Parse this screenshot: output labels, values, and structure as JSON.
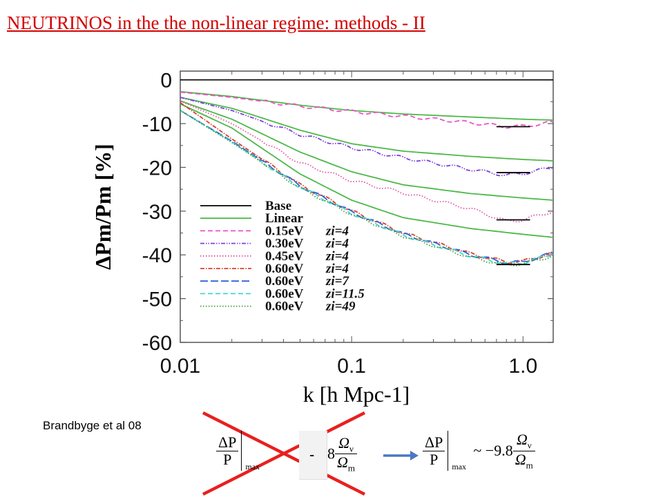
{
  "title": "NEUTRINOS in the the non-linear regime:  methods - II",
  "citation": "Brandbyge et al 08",
  "formula_left": {
    "num": "ΔP",
    "den": "P",
    "sub": "max"
  },
  "formula_minus": "-",
  "formula_mid": {
    "coef": "8",
    "num": "Ω",
    "num_sub": "ν",
    "den": "Ω",
    "den_sub": "m"
  },
  "formula_right": {
    "num": "ΔP",
    "den": "P",
    "sub": "max",
    "approx": "~ −9.8",
    "num2": "Ω",
    "num2_sub": "ν",
    "den2": "Ω",
    "den2_sub": "m"
  },
  "colors": {
    "title": "#d40000",
    "cross": "#e8201e",
    "arrow": "#4a77c4"
  },
  "chart_data": {
    "type": "line",
    "xlabel": "k [h Mpc-1]",
    "ylabel": "ΔPm/Pm [%]",
    "xscale": "log",
    "xlim": [
      0.01,
      1.5
    ],
    "ylim": [
      -60,
      2
    ],
    "xticks": [
      "0.01",
      "0.1",
      "1.0"
    ],
    "xtick_values": [
      0.01,
      0.1,
      1.0
    ],
    "yticks": [
      "0",
      "-10",
      "-20",
      "-30",
      "-40",
      "-50",
      "-60"
    ],
    "ytick_values": [
      0,
      -10,
      -20,
      -30,
      -40,
      -50,
      -60
    ],
    "legend_position": "center-left",
    "legend": [
      {
        "label": "Base",
        "z": "",
        "color": "#000000",
        "dash": ""
      },
      {
        "label": "Linear",
        "z": "",
        "color": "#4cb848",
        "dash": ""
      },
      {
        "label": "0.15eV",
        "z": "zi=4",
        "color": "#ee4fc9",
        "dash": "7,4"
      },
      {
        "label": "0.30eV",
        "z": "zi=4",
        "color": "#7d3fe0",
        "dash": "6,2,1.5,2,1.5,2"
      },
      {
        "label": "0.45eV",
        "z": "zi=4",
        "color": "#e34f9e",
        "dash": "1.5,2.5"
      },
      {
        "label": "0.60eV",
        "z": "zi=4",
        "color": "#d8402c",
        "dash": "6,2,1.5,2"
      },
      {
        "label": "0.60eV",
        "z": "zi=7",
        "color": "#2e5fd6",
        "dash": "11,4"
      },
      {
        "label": "0.60eV",
        "z": "zi=11.5",
        "color": "#43d4d8",
        "dash": "7,4"
      },
      {
        "label": "0.60eV",
        "z": "zi=49",
        "color": "#3d9c2e",
        "dash": "1.5,2.5"
      }
    ],
    "series": [
      {
        "role": "base",
        "x": [
          0.01,
          1.5
        ],
        "y": [
          0,
          0
        ]
      },
      {
        "role": "linear",
        "x": [
          0.01,
          0.02,
          0.05,
          0.1,
          0.2,
          0.5,
          1.0,
          1.5
        ],
        "y": [
          -2.7,
          -3.8,
          -5.8,
          -7.0,
          -7.8,
          -8.5,
          -9.0,
          -9.2
        ]
      },
      {
        "role": "linear",
        "x": [
          0.01,
          0.02,
          0.05,
          0.1,
          0.2,
          0.5,
          1.0,
          1.5
        ],
        "y": [
          -4.0,
          -6.5,
          -11.5,
          -14.6,
          -16.3,
          -17.5,
          -18.2,
          -18.5
        ]
      },
      {
        "role": "linear",
        "x": [
          0.01,
          0.02,
          0.05,
          0.1,
          0.2,
          0.5,
          1.0,
          1.5
        ],
        "y": [
          -4.8,
          -9.0,
          -16.5,
          -21.0,
          -24.0,
          -26.0,
          -27.0,
          -27.5
        ]
      },
      {
        "role": "linear",
        "x": [
          0.01,
          0.02,
          0.05,
          0.1,
          0.2,
          0.5,
          1.0,
          1.5
        ],
        "y": [
          -5.5,
          -11.0,
          -21.5,
          -27.5,
          -31.5,
          -34.0,
          -35.3,
          -36.0
        ]
      },
      {
        "role": "sim",
        "legend_index": 2,
        "x": [
          0.01,
          0.02,
          0.05,
          0.1,
          0.2,
          0.5,
          0.8,
          1.0,
          1.5
        ],
        "y": [
          -2.8,
          -4.0,
          -6.0,
          -7.2,
          -8.3,
          -9.8,
          -10.7,
          -10.6,
          -9.7
        ]
      },
      {
        "role": "sim",
        "legend_index": 3,
        "x": [
          0.01,
          0.02,
          0.05,
          0.1,
          0.2,
          0.5,
          0.8,
          1.0,
          1.5
        ],
        "y": [
          -4.0,
          -7.0,
          -12.5,
          -15.5,
          -17.8,
          -20.5,
          -21.8,
          -21.4,
          -20.0
        ]
      },
      {
        "role": "sim",
        "legend_index": 4,
        "x": [
          0.01,
          0.02,
          0.05,
          0.1,
          0.2,
          0.5,
          0.8,
          1.0,
          1.5
        ],
        "y": [
          -4.8,
          -10.0,
          -19.0,
          -23.0,
          -25.8,
          -29.5,
          -32.3,
          -32.0,
          -30.0
        ]
      },
      {
        "role": "sim",
        "legend_index": 5,
        "x": [
          0.01,
          0.02,
          0.05,
          0.1,
          0.2,
          0.5,
          0.8,
          1.0,
          1.5
        ],
        "y": [
          -5.2,
          -13.5,
          -24.0,
          -30.0,
          -35.0,
          -39.8,
          -41.6,
          -41.5,
          -39.5
        ]
      },
      {
        "role": "sim",
        "legend_index": 6,
        "x": [
          0.01,
          0.02,
          0.05,
          0.1,
          0.2,
          0.5,
          0.8,
          1.0,
          1.5
        ],
        "y": [
          -7.0,
          -14.0,
          -24.2,
          -30.2,
          -35.2,
          -40.0,
          -41.8,
          -41.6,
          -39.6
        ]
      },
      {
        "role": "sim",
        "legend_index": 7,
        "x": [
          0.01,
          0.02,
          0.05,
          0.1,
          0.2,
          0.5,
          0.8,
          1.0,
          1.5
        ],
        "y": [
          -7.0,
          -14.2,
          -24.5,
          -30.5,
          -35.5,
          -40.3,
          -42.0,
          -41.8,
          -39.8
        ]
      },
      {
        "role": "sim",
        "legend_index": 8,
        "x": [
          0.01,
          0.02,
          0.05,
          0.1,
          0.2,
          0.5,
          0.8,
          1.0,
          1.5
        ],
        "y": [
          -7.0,
          -14.3,
          -24.7,
          -30.7,
          -35.7,
          -40.6,
          -42.3,
          -42.0,
          -40.2
        ]
      }
    ],
    "reference_markers": [
      {
        "x": [
          0.7,
          1.1
        ],
        "y": -10.7
      },
      {
        "x": [
          0.7,
          1.1
        ],
        "y": -21.2
      },
      {
        "x": [
          0.7,
          1.1
        ],
        "y": -32.0
      },
      {
        "x": [
          0.7,
          1.1
        ],
        "y": -42.2
      }
    ]
  }
}
